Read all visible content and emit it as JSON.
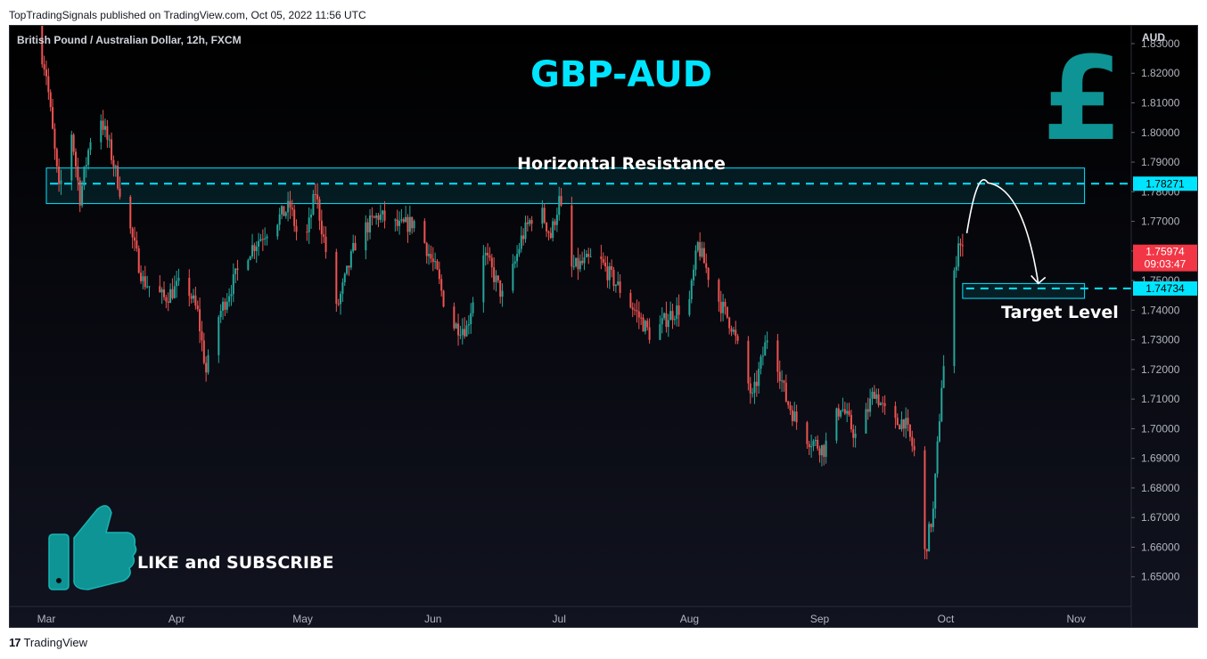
{
  "publisher_line": "TopTradingSignals published on TradingView.com, Oct 05, 2022 11:56 UTC",
  "brand": "TradingView",
  "chart_data": {
    "type": "candlestick",
    "symbol_label": "British Pound / Australian Dollar, 12h, FXCM",
    "title": "GBP-AUD",
    "currency": "AUD",
    "ylim": [
      1.64,
      1.836
    ],
    "yticks": [
      "1.83000",
      "1.82000",
      "1.81000",
      "1.80000",
      "1.79000",
      "1.78000",
      "1.77000",
      "1.76000",
      "1.75000",
      "1.74000",
      "1.73000",
      "1.72000",
      "1.71000",
      "1.70000",
      "1.69000",
      "1.68000",
      "1.67000",
      "1.66000",
      "1.65000"
    ],
    "xticks": [
      {
        "label": "Mar",
        "date": "2022-03-01"
      },
      {
        "label": "Apr",
        "date": "2022-04-01"
      },
      {
        "label": "May",
        "date": "2022-05-01"
      },
      {
        "label": "Jun",
        "date": "2022-06-01"
      },
      {
        "label": "Jul",
        "date": "2022-07-01"
      },
      {
        "label": "Aug",
        "date": "2022-08-01"
      },
      {
        "label": "Sep",
        "date": "2022-09-01"
      },
      {
        "label": "Oct",
        "date": "2022-10-01"
      },
      {
        "label": "Nov",
        "date": "2022-11-01"
      }
    ],
    "resistance_zone": {
      "label": "Horizontal Resistance",
      "low": 1.776,
      "high": 1.788,
      "level": 1.78271,
      "level_label": "1.78271",
      "date_start": "2022-03-01",
      "date_end": "2022-11-03"
    },
    "target_zone": {
      "label": "Target Level",
      "low": 1.744,
      "high": 1.749,
      "level": 1.74734,
      "level_label": "1.74734",
      "date_start": "2022-10-05",
      "date_end": "2022-11-03"
    },
    "last_price": {
      "value": 1.75974,
      "label": "1.75974",
      "countdown": "09:03:47",
      "color": "#f23645"
    },
    "projection": {
      "from": {
        "date": "2022-10-06",
        "value": 1.766
      },
      "peak": {
        "date": "2022-10-11",
        "value": 1.783
      },
      "to": {
        "date": "2022-10-23",
        "value": 1.749
      }
    },
    "guide_points": [
      {
        "date": "2022-02-26",
        "value": 1.838
      },
      {
        "date": "2022-03-01",
        "value": 1.82
      },
      {
        "date": "2022-03-04",
        "value": 1.78
      },
      {
        "date": "2022-03-07",
        "value": 1.8
      },
      {
        "date": "2022-03-09",
        "value": 1.778
      },
      {
        "date": "2022-03-13",
        "value": 1.81
      },
      {
        "date": "2022-03-16",
        "value": 1.795
      },
      {
        "date": "2022-03-19",
        "value": 1.778
      },
      {
        "date": "2022-03-24",
        "value": 1.75
      },
      {
        "date": "2022-03-29",
        "value": 1.744
      },
      {
        "date": "2022-04-03",
        "value": 1.75
      },
      {
        "date": "2022-04-06",
        "value": 1.739
      },
      {
        "date": "2022-04-08",
        "value": 1.719
      },
      {
        "date": "2022-04-11",
        "value": 1.738
      },
      {
        "date": "2022-04-17",
        "value": 1.758
      },
      {
        "date": "2022-04-23",
        "value": 1.768
      },
      {
        "date": "2022-04-28",
        "value": 1.775
      },
      {
        "date": "2022-05-01",
        "value": 1.758
      },
      {
        "date": "2022-05-04",
        "value": 1.78
      },
      {
        "date": "2022-05-09",
        "value": 1.74
      },
      {
        "date": "2022-05-14",
        "value": 1.765
      },
      {
        "date": "2022-05-19",
        "value": 1.772
      },
      {
        "date": "2022-05-24",
        "value": 1.768
      },
      {
        "date": "2022-05-28",
        "value": 1.77
      },
      {
        "date": "2022-06-02",
        "value": 1.752
      },
      {
        "date": "2022-06-05",
        "value": 1.735
      },
      {
        "date": "2022-06-09",
        "value": 1.734
      },
      {
        "date": "2022-06-13",
        "value": 1.76
      },
      {
        "date": "2022-06-18",
        "value": 1.743
      },
      {
        "date": "2022-06-22",
        "value": 1.764
      },
      {
        "date": "2022-06-26",
        "value": 1.776
      },
      {
        "date": "2022-06-29",
        "value": 1.765
      },
      {
        "date": "2022-07-01",
        "value": 1.777
      },
      {
        "date": "2022-07-04",
        "value": 1.754
      },
      {
        "date": "2022-07-10",
        "value": 1.758
      },
      {
        "date": "2022-07-14",
        "value": 1.75
      },
      {
        "date": "2022-07-19",
        "value": 1.74
      },
      {
        "date": "2022-07-23",
        "value": 1.731
      },
      {
        "date": "2022-07-27",
        "value": 1.738
      },
      {
        "date": "2022-08-01",
        "value": 1.743
      },
      {
        "date": "2022-08-03",
        "value": 1.762
      },
      {
        "date": "2022-08-07",
        "value": 1.746
      },
      {
        "date": "2022-08-11",
        "value": 1.735
      },
      {
        "date": "2022-08-16",
        "value": 1.71
      },
      {
        "date": "2022-08-20",
        "value": 1.734
      },
      {
        "date": "2022-08-24",
        "value": 1.71
      },
      {
        "date": "2022-08-28",
        "value": 1.698
      },
      {
        "date": "2022-09-02",
        "value": 1.693
      },
      {
        "date": "2022-09-06",
        "value": 1.708
      },
      {
        "date": "2022-09-10",
        "value": 1.696
      },
      {
        "date": "2022-09-14",
        "value": 1.713
      },
      {
        "date": "2022-09-18",
        "value": 1.701
      },
      {
        "date": "2022-09-21",
        "value": 1.703
      },
      {
        "date": "2022-09-24",
        "value": 1.69
      },
      {
        "date": "2022-09-26",
        "value": 1.658
      },
      {
        "date": "2022-09-28",
        "value": 1.672
      },
      {
        "date": "2022-09-30",
        "value": 1.715
      },
      {
        "date": "2022-10-02",
        "value": 1.738
      },
      {
        "date": "2022-10-04",
        "value": 1.764
      },
      {
        "date": "2022-10-05",
        "value": 1.7597
      }
    ],
    "candle_colors": {
      "up": "#26a69a",
      "down": "#ef5350"
    }
  },
  "overlay": {
    "pound_symbol": "£",
    "like_text": "LIKE and SUBSCRIBE",
    "thumbs_icon": "thumbs-up-icon",
    "accent": "#00e5ff",
    "teal": "#0e9494"
  }
}
